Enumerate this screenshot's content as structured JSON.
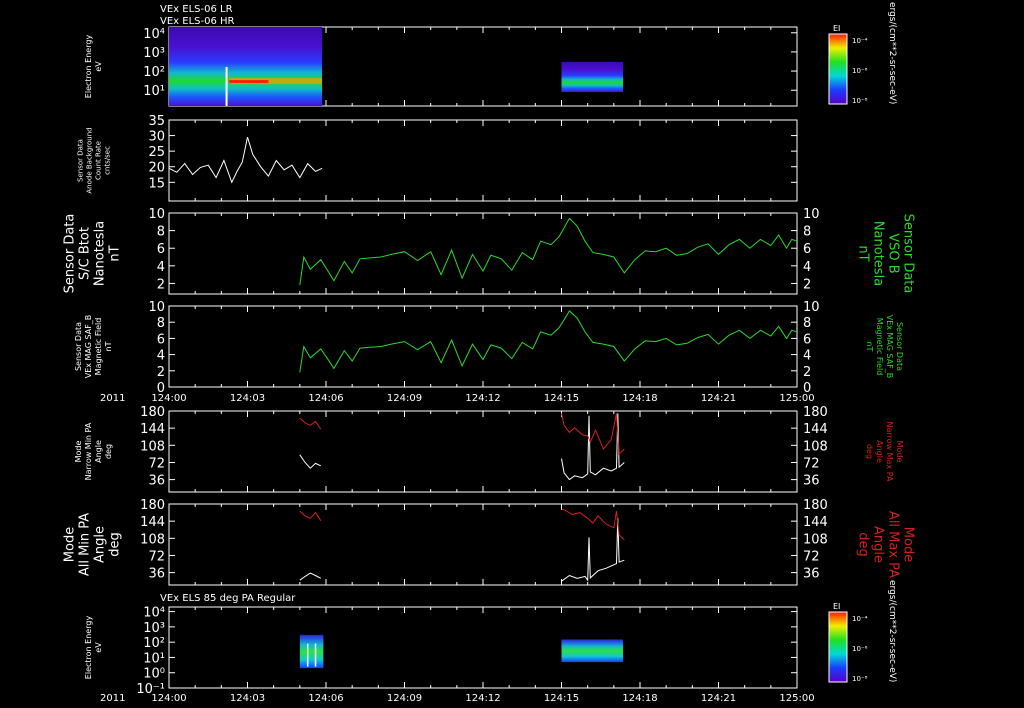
{
  "figure": {
    "title_lines": [
      "VEx ELS-06 LR",
      "VEx ELS-06 HR"
    ],
    "bottom_panel_title": "VEx ELS 85 deg PA Regular",
    "year_label": "2011",
    "time_ticks": [
      "124:00",
      "124:03",
      "124:06",
      "124:09",
      "124:12",
      "124:15",
      "124:18",
      "124:21",
      "125:00"
    ],
    "colorbar_label": "EI",
    "colorbar_units": "ergs/(cm**2-sr-sec-eV)",
    "colorbar_ticks": [
      "10⁻⁴",
      "10⁻⁶",
      "10⁻⁸"
    ]
  },
  "colors": {
    "background": "#000000",
    "axis": "#ffffff",
    "green_trace": "#2bd92b",
    "red_trace": "#d42020",
    "white_trace": "#ffffff"
  },
  "chart_data": [
    {
      "id": "p1",
      "type": "heatmap",
      "ylabel": [
        "Electron Energy",
        "eV"
      ],
      "yscale": "log",
      "yticks": [
        "10⁴",
        "10³",
        "10²",
        "10¹"
      ],
      "ytick_values": [
        10000,
        1000,
        100,
        10
      ],
      "ylim": [
        1.5,
        20000
      ],
      "blocks": [
        {
          "t0": 0.0,
          "t1": 5.85,
          "e_min": 1.5,
          "e_max": 20000
        },
        {
          "t0": 15.0,
          "t1": 17.35,
          "e_min": 8,
          "e_max": 300
        }
      ]
    },
    {
      "id": "p2",
      "type": "line",
      "ylabel": [
        "Sensor Data",
        "Anode Background",
        "Count Rate",
        "cnts/sec"
      ],
      "yticks": [
        "35",
        "30",
        "25",
        "20",
        "15"
      ],
      "ytick_values": [
        35,
        30,
        25,
        20,
        15
      ],
      "ylim": [
        9,
        35
      ],
      "series": [
        {
          "name": "background",
          "color": "white",
          "t": [
            0.0,
            0.3,
            0.6,
            0.9,
            1.2,
            1.5,
            1.8,
            2.1,
            2.4,
            2.6,
            2.8,
            3.0,
            3.2,
            3.5,
            3.8,
            4.1,
            4.4,
            4.7,
            5.0,
            5.3,
            5.6,
            5.85
          ],
          "values": [
            19.5,
            18.2,
            21.0,
            17.5,
            19.8,
            20.5,
            16.5,
            22.0,
            15.0,
            18.5,
            21.5,
            29.5,
            24.0,
            20.0,
            17.0,
            22.0,
            19.0,
            20.5,
            16.5,
            21.0,
            18.5,
            19.5
          ]
        }
      ]
    },
    {
      "id": "p3",
      "type": "line",
      "ylabel": [
        "Sensor Data",
        "S/C Btot",
        "Nanotesla",
        "nT"
      ],
      "ylabel_right": [
        "Sensor Data",
        "VSO B",
        "Nanotesla",
        "nT"
      ],
      "yticks": [
        "10",
        "8",
        "6",
        "4",
        "2"
      ],
      "ytick_values": [
        10,
        8,
        6,
        4,
        2
      ],
      "ylim": [
        0.8,
        10
      ],
      "series": [
        {
          "name": "Btot",
          "color": "green",
          "t": [
            5.0,
            5.15,
            5.4,
            5.8,
            6.1,
            6.3,
            6.7,
            7.0,
            7.3,
            7.7,
            8.1,
            8.5,
            9.0,
            9.5,
            10.0,
            10.4,
            10.8,
            11.2,
            11.6,
            12.0,
            12.3,
            12.7,
            13.1,
            13.5,
            13.9,
            14.2,
            14.6,
            14.9,
            15.1,
            15.3,
            15.6,
            15.9,
            16.2,
            16.6,
            17.0,
            17.4,
            17.8,
            18.2,
            18.6,
            19.0,
            19.4,
            19.8,
            20.2,
            20.6,
            21.0,
            21.4,
            21.8,
            22.2,
            22.6,
            23.0,
            23.3,
            23.6,
            23.8,
            24.0
          ],
          "values": [
            1.8,
            5.0,
            3.6,
            4.7,
            3.3,
            2.3,
            4.5,
            3.2,
            4.8,
            4.9,
            5.0,
            5.3,
            5.6,
            4.6,
            5.6,
            3.0,
            5.8,
            2.6,
            5.3,
            3.4,
            5.2,
            4.8,
            3.5,
            5.5,
            4.7,
            6.8,
            6.4,
            7.3,
            8.3,
            9.4,
            8.5,
            6.8,
            5.5,
            5.3,
            5.0,
            3.2,
            4.7,
            5.7,
            5.6,
            6.0,
            5.2,
            5.4,
            6.1,
            6.5,
            5.3,
            6.4,
            7.0,
            6.0,
            7.0,
            6.3,
            7.5,
            6.0,
            7.0,
            6.8
          ]
        }
      ]
    },
    {
      "id": "p4",
      "type": "line",
      "ylabel": [
        "Sensor Data",
        "VEx MAG SAF_B",
        "Magnetic Field",
        "nT"
      ],
      "ylabel_right": [
        "Sensor Data",
        "VEx MAG SAF_B",
        "Magnetic Field",
        "nT"
      ],
      "yticks": [
        "10",
        "8",
        "6",
        "4",
        "2",
        "0"
      ],
      "ytick_values": [
        10,
        8,
        6,
        4,
        2,
        0
      ],
      "ylim": [
        0,
        10
      ],
      "series": [
        {
          "name": "B",
          "color": "green",
          "t": [
            5.0,
            5.15,
            5.4,
            5.8,
            6.1,
            6.3,
            6.7,
            7.0,
            7.3,
            7.7,
            8.1,
            8.5,
            9.0,
            9.5,
            10.0,
            10.4,
            10.8,
            11.2,
            11.6,
            12.0,
            12.3,
            12.7,
            13.1,
            13.5,
            13.9,
            14.2,
            14.6,
            14.9,
            15.1,
            15.3,
            15.6,
            15.9,
            16.2,
            16.6,
            17.0,
            17.4,
            17.8,
            18.2,
            18.6,
            19.0,
            19.4,
            19.8,
            20.2,
            20.6,
            21.0,
            21.4,
            21.8,
            22.2,
            22.6,
            23.0,
            23.3,
            23.6,
            23.8,
            24.0
          ],
          "values": [
            1.8,
            5.0,
            3.6,
            4.7,
            3.3,
            2.3,
            4.5,
            3.2,
            4.8,
            4.9,
            5.0,
            5.3,
            5.6,
            4.6,
            5.6,
            3.0,
            5.8,
            2.6,
            5.3,
            3.4,
            5.2,
            4.8,
            3.5,
            5.5,
            4.7,
            6.8,
            6.4,
            7.3,
            8.3,
            9.4,
            8.5,
            6.8,
            5.5,
            5.3,
            5.0,
            3.2,
            4.7,
            5.7,
            5.6,
            6.0,
            5.2,
            5.4,
            6.1,
            6.5,
            5.3,
            6.4,
            7.0,
            6.0,
            7.0,
            6.3,
            7.5,
            6.0,
            7.0,
            6.8
          ]
        }
      ]
    },
    {
      "id": "p5",
      "type": "line",
      "ylabel": [
        "Mode",
        "Narrow Min PA",
        "Angle",
        "deg"
      ],
      "ylabel_right": [
        "Mode",
        "Narrow Max PA",
        "Angle",
        "deg"
      ],
      "yticks": [
        "180",
        "144",
        "108",
        "72",
        "36"
      ],
      "ytick_values": [
        180,
        144,
        108,
        72,
        36
      ],
      "ylim": [
        10,
        180
      ],
      "series": [
        {
          "name": "min",
          "color": "white",
          "segments": [
            {
              "t": [
                5.0,
                5.2,
                5.4,
                5.6,
                5.8
              ],
              "values": [
                88,
                72,
                60,
                70,
                65
              ]
            },
            {
              "t": [
                15.0,
                15.1,
                15.3,
                15.5,
                15.8,
                16.0,
                16.05,
                16.1,
                16.3,
                16.6,
                16.9,
                17.1,
                17.15,
                17.2,
                17.4
              ],
              "values": [
                80,
                50,
                36,
                44,
                40,
                48,
                170,
                52,
                46,
                60,
                54,
                60,
                175,
                62,
                72
              ]
            }
          ]
        },
        {
          "name": "max",
          "color": "red",
          "segments": [
            {
              "t": [
                5.0,
                5.2,
                5.4,
                5.6,
                5.8
              ],
              "values": [
                165,
                155,
                150,
                158,
                142
              ]
            },
            {
              "t": [
                15.0,
                15.1,
                15.3,
                15.5,
                15.8,
                16.0,
                16.1,
                16.3,
                16.6,
                16.9,
                17.1,
                17.2,
                17.4
              ],
              "values": [
                175,
                150,
                135,
                145,
                130,
                128,
                115,
                140,
                100,
                120,
                175,
                90,
                100
              ]
            }
          ]
        }
      ]
    },
    {
      "id": "p6",
      "type": "line",
      "ylabel": [
        "Mode",
        "All Min PA",
        "Angle",
        "deg"
      ],
      "ylabel_right": [
        "Mode",
        "All Max PA",
        "Angle",
        "deg"
      ],
      "yticks": [
        "180",
        "144",
        "108",
        "72",
        "36"
      ],
      "ytick_values": [
        180,
        144,
        108,
        72,
        36
      ],
      "ylim": [
        10,
        180
      ],
      "series": [
        {
          "name": "min",
          "color": "white",
          "segments": [
            {
              "t": [
                5.0,
                5.2,
                5.4,
                5.6,
                5.8
              ],
              "values": [
                20,
                28,
                35,
                30,
                24
              ]
            },
            {
              "t": [
                15.0,
                15.3,
                15.6,
                15.9,
                16.0,
                16.05,
                16.1,
                16.4,
                16.7,
                16.9,
                17.1,
                17.15,
                17.2,
                17.4
              ],
              "values": [
                18,
                30,
                24,
                28,
                20,
                110,
                25,
                40,
                45,
                50,
                55,
                150,
                58,
                62
              ]
            }
          ]
        },
        {
          "name": "max",
          "color": "red",
          "segments": [
            {
              "t": [
                5.0,
                5.2,
                5.4,
                5.6,
                5.8
              ],
              "values": [
                165,
                155,
                150,
                162,
                145
              ]
            },
            {
              "t": [
                15.0,
                15.2,
                15.4,
                15.7,
                16.0,
                16.2,
                16.4,
                16.7,
                17.0,
                17.1,
                17.2,
                17.4
              ],
              "values": [
                170,
                165,
                158,
                162,
                150,
                140,
                155,
                138,
                130,
                165,
                115,
                105
              ]
            }
          ]
        }
      ]
    },
    {
      "id": "p7",
      "type": "heatmap",
      "ylabel": [
        "Electron Energy",
        "eV"
      ],
      "yscale": "log",
      "yticks": [
        "10⁴",
        "10³",
        "10²",
        "10¹",
        "10⁰",
        "10⁻¹"
      ],
      "ytick_values": [
        10000,
        1000,
        100,
        10,
        1,
        0.1
      ],
      "ylim": [
        0.1,
        20000
      ],
      "blocks": [
        {
          "t0": 5.0,
          "t1": 5.9,
          "e_min": 2,
          "e_max": 300
        },
        {
          "t0": 15.0,
          "t1": 17.35,
          "e_min": 5,
          "e_max": 150
        }
      ]
    }
  ]
}
